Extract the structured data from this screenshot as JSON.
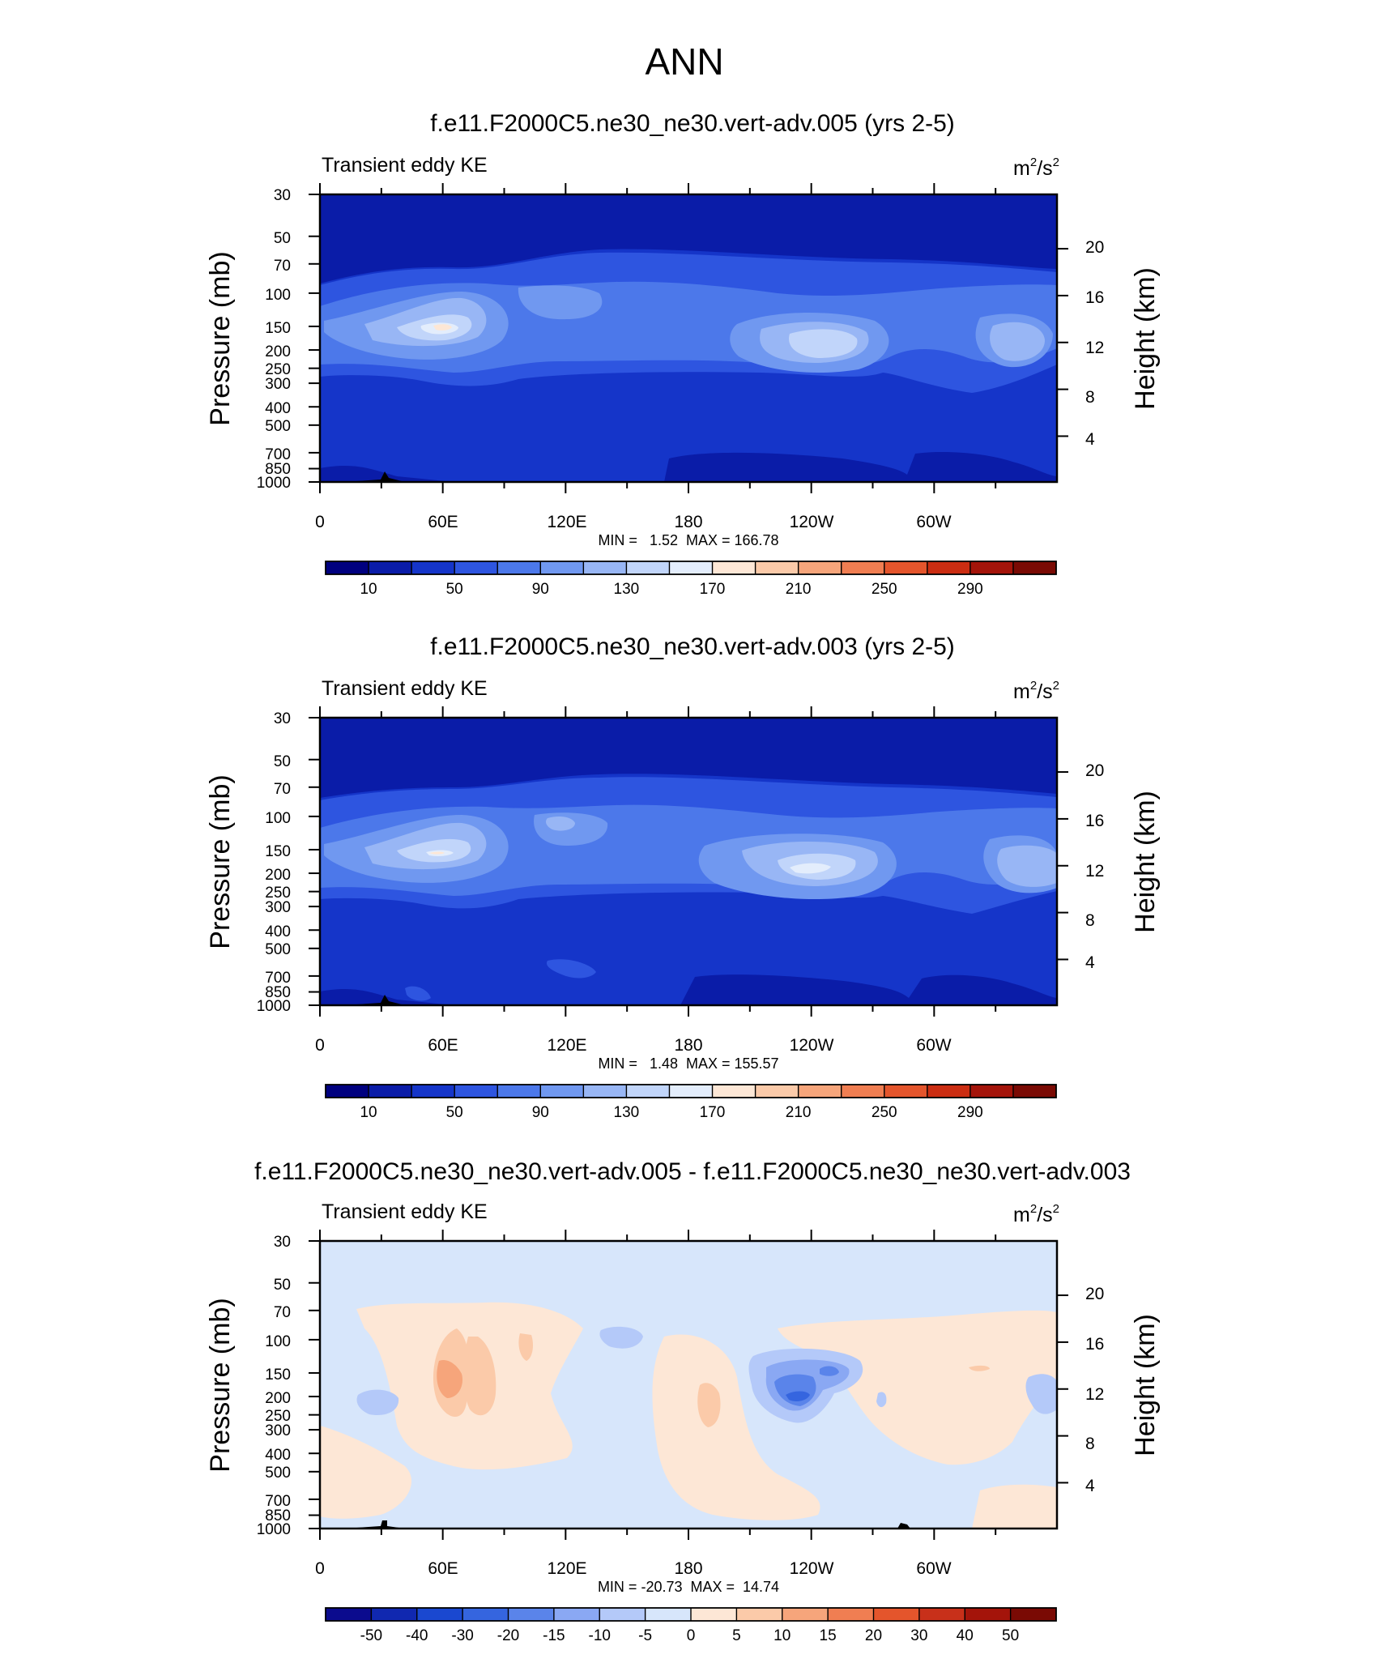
{
  "page": {
    "main_title": "ANN"
  },
  "chart_data": [
    {
      "type": "heatmap",
      "title": "f.e11.F2000C5.ne30_ne30.vert-adv.005 (yrs 2-5)",
      "left_label": "Transient eddy KE",
      "unit_base": "m",
      "unit_mid": "/s",
      "unit_exp": "2",
      "ylabel": "Pressure (mb)",
      "y2label": "Height (km)",
      "x_ticks": [
        "0",
        "60E",
        "120E",
        "180",
        "120W",
        "60W"
      ],
      "x_range": [
        0,
        360
      ],
      "y_ticks": [
        "30",
        "50",
        "70",
        "100",
        "150",
        "200",
        "250",
        "300",
        "400",
        "500",
        "700",
        "850",
        "1000"
      ],
      "y_range_mb": [
        1000,
        30
      ],
      "y_scale": "log",
      "height_ticks_km": [
        "4",
        "8",
        "12",
        "16",
        "20"
      ],
      "stats": "MIN =   1.52  MAX = 166.78",
      "colorbar_labels": [
        "10",
        "50",
        "90",
        "130",
        "170",
        "210",
        "250",
        "290"
      ]
    },
    {
      "type": "heatmap",
      "title": "f.e11.F2000C5.ne30_ne30.vert-adv.003 (yrs 2-5)",
      "left_label": "Transient eddy KE",
      "unit_base": "m",
      "unit_mid": "/s",
      "unit_exp": "2",
      "ylabel": "Pressure (mb)",
      "y2label": "Height (km)",
      "x_ticks": [
        "0",
        "60E",
        "120E",
        "180",
        "120W",
        "60W"
      ],
      "x_range": [
        0,
        360
      ],
      "y_ticks": [
        "30",
        "50",
        "70",
        "100",
        "150",
        "200",
        "250",
        "300",
        "400",
        "500",
        "700",
        "850",
        "1000"
      ],
      "y_range_mb": [
        1000,
        30
      ],
      "y_scale": "log",
      "height_ticks_km": [
        "4",
        "8",
        "12",
        "16",
        "20"
      ],
      "stats": "MIN =   1.48  MAX = 155.57",
      "colorbar_labels": [
        "10",
        "50",
        "90",
        "130",
        "170",
        "210",
        "250",
        "290"
      ]
    },
    {
      "type": "heatmap",
      "title": "f.e11.F2000C5.ne30_ne30.vert-adv.005 - f.e11.F2000C5.ne30_ne30.vert-adv.003",
      "left_label": "Transient eddy KE",
      "unit_base": "m",
      "unit_mid": "/s",
      "unit_exp": "2",
      "ylabel": "Pressure (mb)",
      "y2label": "Height (km)",
      "x_ticks": [
        "0",
        "60E",
        "120E",
        "180",
        "120W",
        "60W"
      ],
      "x_range": [
        0,
        360
      ],
      "y_ticks": [
        "30",
        "50",
        "70",
        "100",
        "150",
        "200",
        "250",
        "300",
        "400",
        "500",
        "700",
        "850",
        "1000"
      ],
      "y_range_mb": [
        1000,
        30
      ],
      "y_scale": "log",
      "height_ticks_km": [
        "4",
        "8",
        "12",
        "16",
        "20"
      ],
      "stats": "MIN = -20.73  MAX =  14.74",
      "colorbar_labels": [
        "-50",
        "-40",
        "-30",
        "-20",
        "-15",
        "-10",
        "-5",
        "0",
        "5",
        "10",
        "15",
        "20",
        "30",
        "40",
        "50"
      ]
    }
  ],
  "colors": {
    "abs_scale": [
      "#00007f",
      "#0a1ca8",
      "#1535c9",
      "#2e55e0",
      "#4c78ea",
      "#7098f0",
      "#98b6f5",
      "#c1d5fa",
      "#e3edfc",
      "#fde7d6",
      "#fbcaa9",
      "#f6a57b",
      "#f07e52",
      "#e4552c",
      "#cb2d12",
      "#a4140a",
      "#7a0a04"
    ],
    "diff_scale": [
      "#0b0b8e",
      "#1028b0",
      "#1a48d0",
      "#3565df",
      "#5a84ea",
      "#8aa8f3",
      "#b4c9f9",
      "#d7e6fb",
      "#fde7d6",
      "#fbcaa9",
      "#f6a57b",
      "#f07e52",
      "#e4552c",
      "#c8301a",
      "#a4140a",
      "#7a0a04"
    ]
  }
}
